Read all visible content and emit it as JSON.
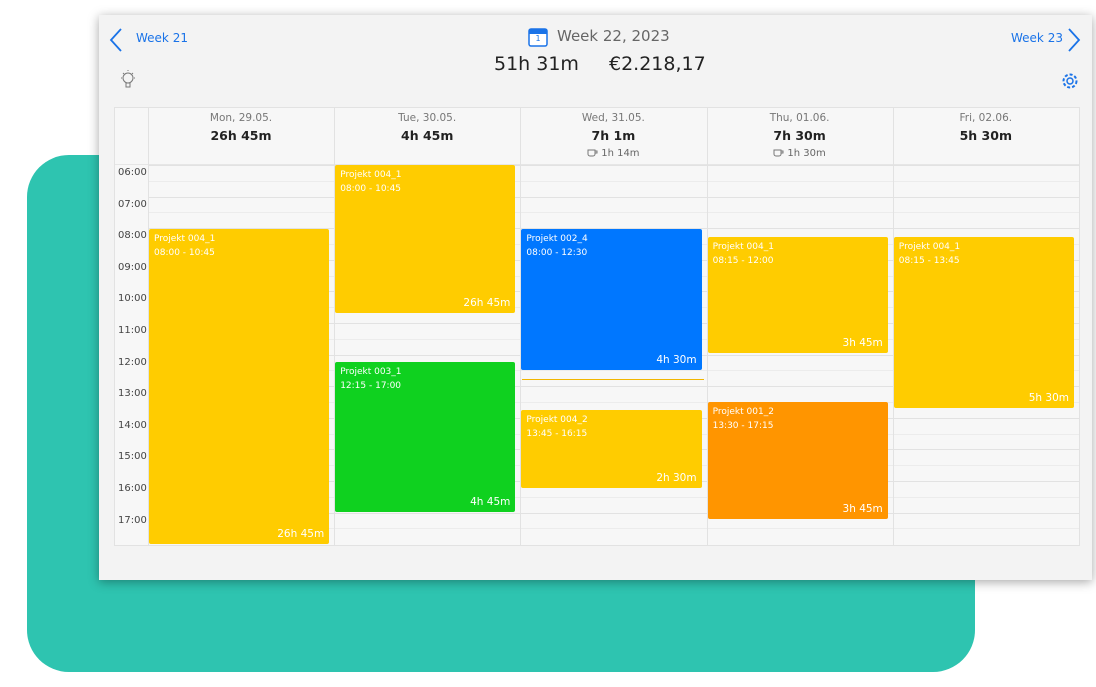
{
  "header": {
    "prev": "Week 21",
    "calendar_icon_day": "1",
    "title": "Week 22, 2023",
    "hours": "51h 31m",
    "amount": "€2.218,17",
    "next": "Week 23"
  },
  "days": [
    {
      "date": "Mon, 29.05.",
      "total": "26h 45m"
    },
    {
      "date": "Tue, 30.05.",
      "total": "4h 45m"
    },
    {
      "date": "Wed, 31.05.",
      "total": "7h 1m",
      "break": "1h 14m"
    },
    {
      "date": "Thu, 01.06.",
      "total": "7h 30m",
      "break": "1h 30m"
    },
    {
      "date": "Fri, 02.06.",
      "total": "5h 30m"
    }
  ],
  "time_labels": [
    "06:00",
    "07:00",
    "08:00",
    "09:00",
    "10:00",
    "11:00",
    "12:00",
    "13:00",
    "14:00",
    "15:00",
    "16:00",
    "17:00"
  ],
  "events": [
    {
      "day": 0,
      "title": "Projekt 004_1",
      "time": "08:00 - 10:45",
      "duration": "26h 45m",
      "color": "#ffcc00"
    },
    {
      "day": 1,
      "title": "Projekt 004_1",
      "time": "08:00 - 10:45",
      "duration": "26h 45m",
      "color": "#ffcc00"
    },
    {
      "day": 1,
      "title": "Projekt 003_1",
      "time": "12:15 - 17:00",
      "duration": "4h 45m",
      "color": "#0fd11f"
    },
    {
      "day": 2,
      "title": "Projekt 002_4",
      "time": "08:00 - 12:30",
      "duration": "4h 30m",
      "color": "#0077ff"
    },
    {
      "day": 2,
      "title": "Projekt 004_2",
      "time": "13:45 - 16:15",
      "duration": "2h 30m",
      "color": "#ffcc00"
    },
    {
      "day": 3,
      "title": "Projekt 004_1",
      "time": "08:15 - 12:00",
      "duration": "3h 45m",
      "color": "#ffcc00"
    },
    {
      "day": 3,
      "title": "Projekt 001_2",
      "time": "13:30 - 17:15",
      "duration": "3h 45m",
      "color": "#ff9500"
    },
    {
      "day": 4,
      "title": "Projekt 004_1",
      "time": "08:15 - 13:45",
      "duration": "5h 30m",
      "color": "#ffcc00"
    }
  ]
}
